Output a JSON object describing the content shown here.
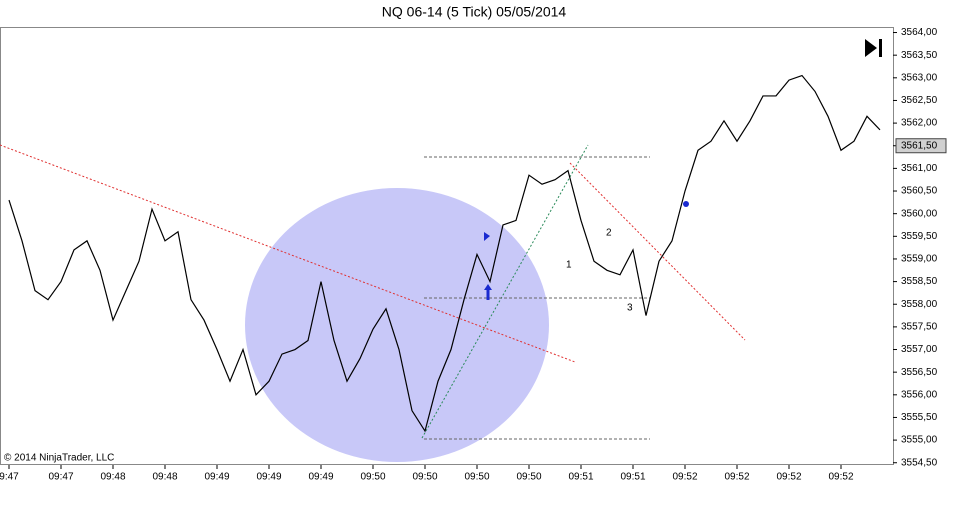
{
  "chart_data": {
    "type": "line",
    "title": "NQ 06-14 (5 Tick)  05/05/2014",
    "copyright": "© 2014 NinjaTrader, LLC",
    "annotations": [
      "1",
      "2",
      "3"
    ],
    "color": "#000000",
    "categories": [
      "9:47",
      null,
      null,
      null,
      "09:47",
      null,
      null,
      null,
      "09:48",
      null,
      null,
      null,
      "09:48",
      null,
      null,
      null,
      "09:49",
      null,
      null,
      null,
      "09:49",
      null,
      null,
      null,
      "09:49",
      null,
      null,
      null,
      "09:50",
      null,
      null,
      null,
      "09:50",
      null,
      null,
      null,
      "09:50",
      null,
      null,
      null,
      "09:50",
      null,
      null,
      null,
      "09:51",
      null,
      null,
      null,
      "09:51",
      null,
      null,
      null,
      "09:52",
      null,
      null,
      null,
      "09:52",
      null,
      null,
      null,
      "09:52",
      null,
      null,
      null,
      "09:52",
      null,
      null,
      null
    ],
    "values": [
      3560.3,
      3559.4,
      3558.3,
      3558.1,
      3558.5,
      3559.2,
      3559.4,
      3558.75,
      3557.65,
      3558.3,
      3558.95,
      3560.1,
      3559.4,
      3559.6,
      3558.1,
      3557.65,
      3557.0,
      3556.3,
      3557.0,
      3556.0,
      3556.3,
      3556.9,
      3557.0,
      3557.2,
      3558.5,
      3557.2,
      3556.3,
      3556.8,
      3557.45,
      3557.9,
      3557.0,
      3555.65,
      3555.2,
      3556.3,
      3557.0,
      3558.1,
      3559.1,
      3558.5,
      3559.75,
      3559.85,
      3560.85,
      3560.65,
      3560.75,
      3560.95,
      3559.85,
      3558.95,
      3558.75,
      3558.65,
      3559.2,
      3557.75,
      3558.95,
      3559.4,
      3560.5,
      3561.4,
      3561.6,
      3562.05,
      3561.6,
      3562.05,
      3562.6,
      3562.6,
      3562.95,
      3563.05,
      3562.7,
      3562.15,
      3561.4,
      3561.6,
      3562.15,
      3561.85
    ],
    "last_price": {
      "value": 3561.5,
      "label": "3561,50"
    },
    "ylim": [
      3554.45,
      3564.1
    ],
    "yticks": [
      {
        "value": 3554.5,
        "label": "3554,50"
      },
      {
        "value": 3555.0,
        "label": "3555,00"
      },
      {
        "value": 3555.5,
        "label": "3555,50"
      },
      {
        "value": 3556.0,
        "label": "3556,00"
      },
      {
        "value": 3556.5,
        "label": "3556,50"
      },
      {
        "value": 3557.0,
        "label": "3557,00"
      },
      {
        "value": 3557.5,
        "label": "3557,50"
      },
      {
        "value": 3558.0,
        "label": "3558,00"
      },
      {
        "value": 3558.5,
        "label": "3558,50"
      },
      {
        "value": 3559.0,
        "label": "3559,00"
      },
      {
        "value": 3559.5,
        "label": "3559,50"
      },
      {
        "value": 3560.0,
        "label": "3560,00"
      },
      {
        "value": 3560.5,
        "label": "3560,50"
      },
      {
        "value": 3561.0,
        "label": "3561,00"
      },
      {
        "value": 3561.5,
        "label": "3561,50"
      },
      {
        "value": 3562.0,
        "label": "3562,00"
      },
      {
        "value": 3562.5,
        "label": "3562,50"
      },
      {
        "value": 3563.0,
        "label": "3563,00"
      },
      {
        "value": 3563.5,
        "label": "3563,50"
      },
      {
        "value": 3564.0,
        "label": "3564,00"
      }
    ],
    "grid": false
  }
}
